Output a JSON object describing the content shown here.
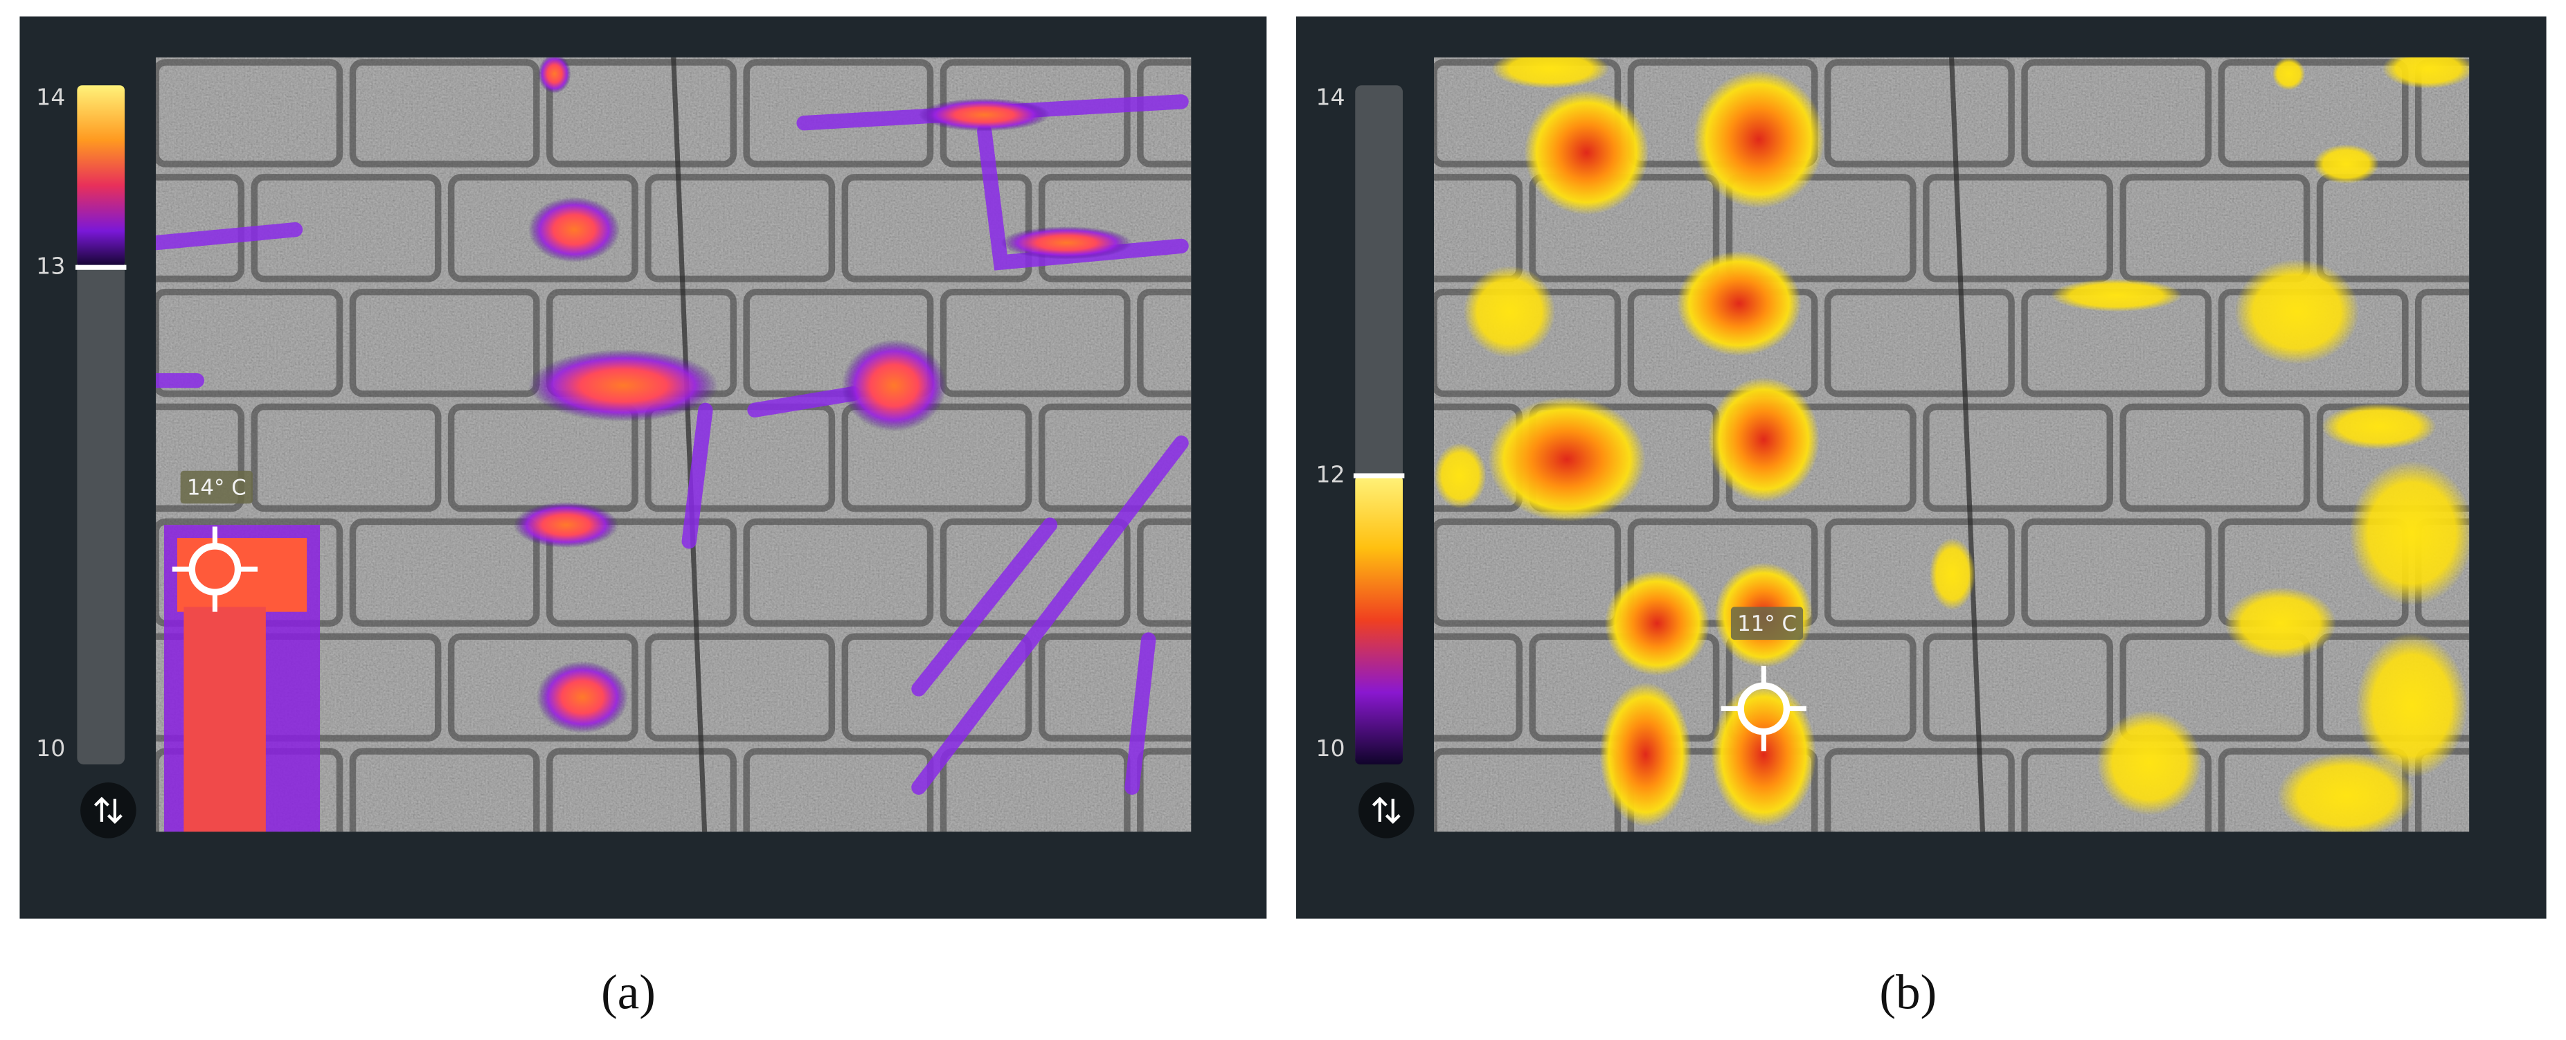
{
  "panels": [
    {
      "scale_labels": [
        "14",
        "13",
        "10"
      ],
      "spot_label": "14° C",
      "caption": "(a)"
    },
    {
      "scale_labels": [
        "14",
        "12",
        "10"
      ],
      "spot_label": "11° C",
      "caption": "(b)"
    }
  ]
}
